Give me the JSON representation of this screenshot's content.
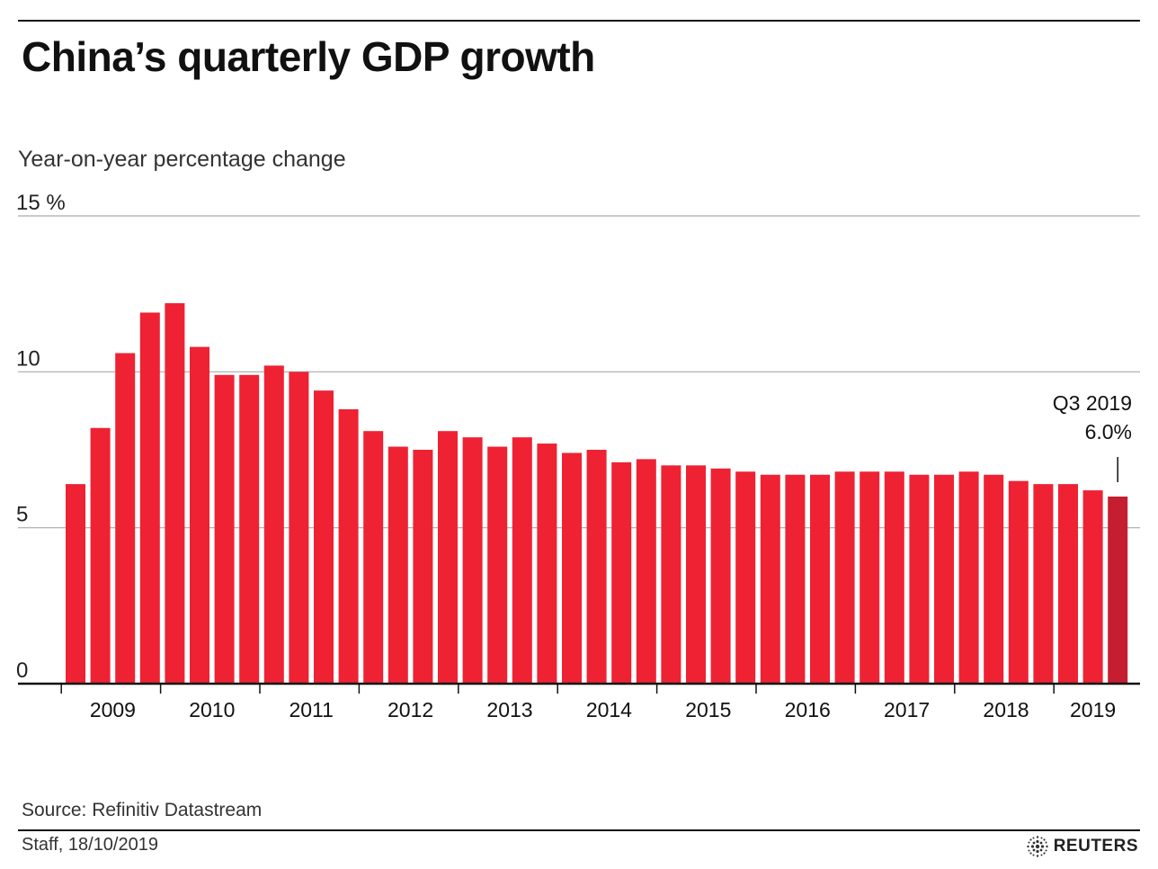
{
  "header": {
    "title": "China’s quarterly GDP growth",
    "subtitle": "Year-on-year percentage change"
  },
  "footer": {
    "source": "Source: Refinitiv Datastream",
    "credit": "Staff,  18/10/2019",
    "brand": "REUTERS"
  },
  "colors": {
    "bar": "#ee2233",
    "bar_highlight": "#c41e30",
    "gridline": "#aaaaaa",
    "axis": "#111111"
  },
  "chart_data": {
    "type": "bar",
    "title": "China’s quarterly GDP growth",
    "ylabel": "Year-on-year percentage change",
    "ylim": [
      0,
      15
    ],
    "yticks": [
      {
        "value": 0,
        "label": "0"
      },
      {
        "value": 5,
        "label": "5"
      },
      {
        "value": 10,
        "label": "10"
      },
      {
        "value": 15,
        "label": "15  %"
      }
    ],
    "year_labels": [
      "2009",
      "2010",
      "2011",
      "2012",
      "2013",
      "2014",
      "2015",
      "2016",
      "2017",
      "2018",
      "2019"
    ],
    "categories": [
      "Q1 2009",
      "Q2 2009",
      "Q3 2009",
      "Q4 2009",
      "Q1 2010",
      "Q2 2010",
      "Q3 2010",
      "Q4 2010",
      "Q1 2011",
      "Q2 2011",
      "Q3 2011",
      "Q4 2011",
      "Q1 2012",
      "Q2 2012",
      "Q3 2012",
      "Q4 2012",
      "Q1 2013",
      "Q2 2013",
      "Q3 2013",
      "Q4 2013",
      "Q1 2014",
      "Q2 2014",
      "Q3 2014",
      "Q4 2014",
      "Q1 2015",
      "Q2 2015",
      "Q3 2015",
      "Q4 2015",
      "Q1 2016",
      "Q2 2016",
      "Q3 2016",
      "Q4 2016",
      "Q1 2017",
      "Q2 2017",
      "Q3 2017",
      "Q4 2017",
      "Q1 2018",
      "Q2 2018",
      "Q3 2018",
      "Q4 2018",
      "Q1 2019",
      "Q2 2019",
      "Q3 2019"
    ],
    "values": [
      6.4,
      8.2,
      10.6,
      11.9,
      12.2,
      10.8,
      9.9,
      9.9,
      10.2,
      10.0,
      9.4,
      8.8,
      8.1,
      7.6,
      7.5,
      8.1,
      7.9,
      7.6,
      7.9,
      7.7,
      7.4,
      7.5,
      7.1,
      7.2,
      7.0,
      7.0,
      6.9,
      6.8,
      6.7,
      6.7,
      6.7,
      6.8,
      6.8,
      6.8,
      6.7,
      6.7,
      6.8,
      6.7,
      6.5,
      6.4,
      6.4,
      6.2,
      6.0
    ],
    "annotation": {
      "line1": "Q3 2019",
      "line2": "6.0%"
    },
    "grid": true
  }
}
